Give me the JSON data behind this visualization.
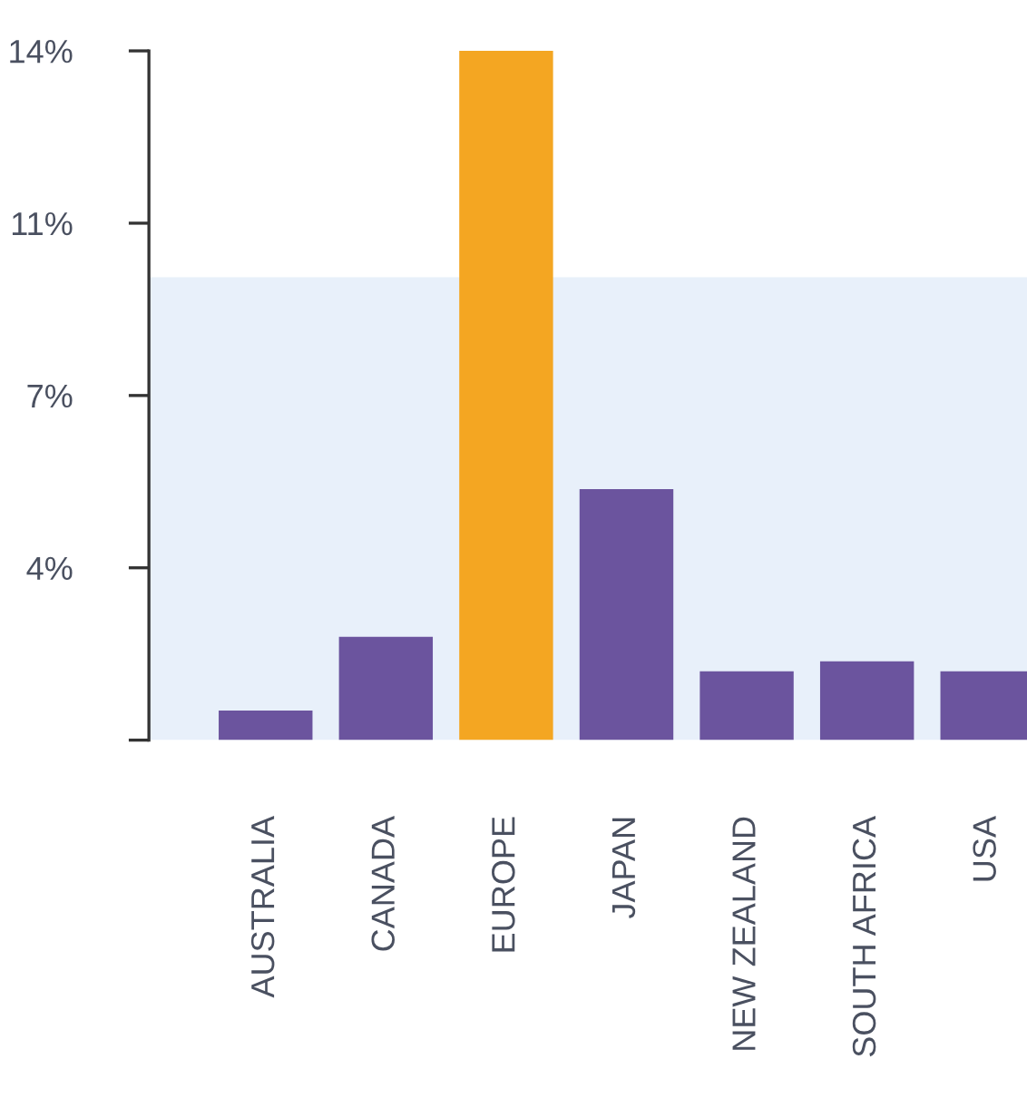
{
  "chart_data": {
    "type": "bar",
    "categories": [
      "AUSTRALIA",
      "CANADA",
      "EUROPE",
      "JAPAN",
      "NEW ZEALAND",
      "SOUTH AFRICA",
      "USA"
    ],
    "values": [
      0.6,
      2.1,
      14,
      5.1,
      1.4,
      1.6,
      1.4
    ],
    "colors": [
      "#6b549e",
      "#6b549e",
      "#f4a622",
      "#6b549e",
      "#6b549e",
      "#6b549e",
      "#6b549e"
    ],
    "ylim": [
      0,
      14
    ],
    "yticks": [
      {
        "value": 0,
        "label": null
      },
      {
        "value": 3.5,
        "label": "4%"
      },
      {
        "value": 7,
        "label": "7%"
      },
      {
        "value": 10.5,
        "label": "11%"
      },
      {
        "value": 14,
        "label": "14%"
      }
    ],
    "bands": [
      {
        "axis": "y",
        "from": 0,
        "to": 9.4,
        "color": "#e8f0fa"
      }
    ],
    "grid": false,
    "legend": false
  }
}
